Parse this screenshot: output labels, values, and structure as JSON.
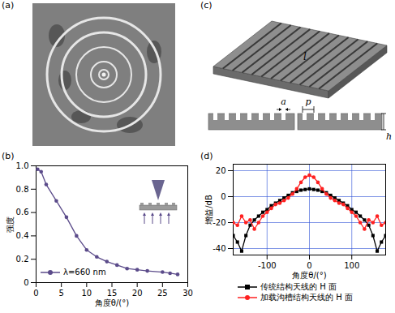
{
  "figure": {
    "panel_labels": [
      "(a)",
      "(b)",
      "(c)",
      "(d)"
    ],
    "diagram_c": {
      "slab_label": "l",
      "groove_width": "a",
      "period": "p",
      "height": "h"
    }
  },
  "chart_data": [
    {
      "type": "line",
      "x_label": "角度θ/(°)",
      "y_label": "强度",
      "x": [
        0.3,
        1,
        2,
        4,
        6,
        8,
        10,
        12,
        14,
        16,
        18,
        20,
        22,
        25,
        26.5,
        28
      ],
      "xlim": [
        0,
        30
      ],
      "xticks": [
        0,
        5,
        10,
        15,
        20,
        25,
        30
      ],
      "ylim": [
        0,
        1
      ],
      "yticks": [
        0,
        0.2,
        0.4,
        0.6,
        0.8,
        {
          "value": 1,
          "label": "1.0"
        }
      ],
      "grid": false,
      "legend": "bottom-left",
      "series": [
        {
          "name": "λ=660 nm",
          "color": "#5b4b8a",
          "marker": "circle",
          "values": [
            0.97,
            0.95,
            0.84,
            0.7,
            0.56,
            0.4,
            0.28,
            0.22,
            0.18,
            0.15,
            0.12,
            0.11,
            0.1,
            0.09,
            0.08,
            0.07
          ]
        }
      ]
    },
    {
      "type": "line",
      "x_label": "角度θ/(°)",
      "y_label": "增益/dB",
      "x": [
        -180,
        -170,
        -160,
        -150,
        -140,
        -130,
        -120,
        -110,
        -100,
        -90,
        -80,
        -70,
        -60,
        -50,
        -40,
        -30,
        -20,
        -10,
        0,
        10,
        20,
        30,
        40,
        50,
        60,
        70,
        80,
        90,
        100,
        110,
        120,
        130,
        140,
        150,
        160,
        170,
        180
      ],
      "xlim": [
        -180,
        180
      ],
      "xticks": [
        -100,
        0,
        100
      ],
      "ylim": [
        -45,
        25
      ],
      "yticks": [
        -40,
        -20,
        0,
        20
      ],
      "grid": true,
      "legend": "bottom",
      "series": [
        {
          "name": "传统结构天线的 H 面",
          "color": "#000000",
          "marker": "square",
          "values": [
            -30,
            -35,
            -42,
            -30,
            -22,
            -18,
            -15,
            -12,
            -10,
            -7,
            -5,
            -3,
            -1,
            1,
            3,
            4,
            5,
            5.5,
            6,
            5.5,
            5,
            4,
            3,
            1,
            -1,
            -3,
            -5,
            -7,
            -10,
            -12,
            -15,
            -18,
            -22,
            -30,
            -42,
            -35,
            -30
          ]
        },
        {
          "name": "加载沟槽结构天线的 H 面",
          "color": "#ff2020",
          "marker": "circle",
          "values": [
            -20,
            -22,
            -15,
            -20,
            -18,
            -25,
            -20,
            -15,
            -12,
            -9,
            -6,
            -5,
            -3,
            -1,
            2,
            6,
            11,
            15,
            16.5,
            15,
            11,
            6,
            2,
            -1,
            -3,
            -5,
            -6,
            -9,
            -12,
            -15,
            -20,
            -25,
            -18,
            -20,
            -15,
            -22,
            -20
          ]
        }
      ]
    }
  ]
}
